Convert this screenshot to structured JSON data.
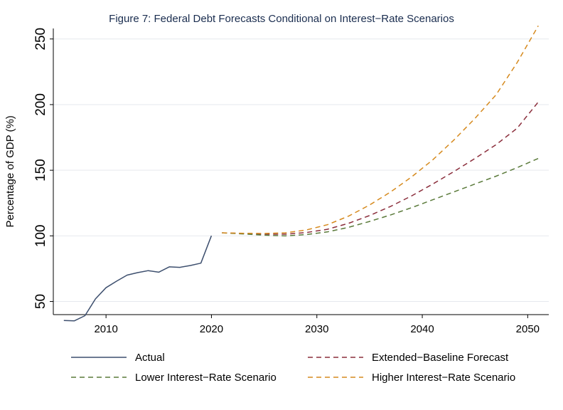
{
  "chart_data": {
    "type": "line",
    "title": "Figure 7: Federal Debt Forecasts Conditional on Interest−Rate Scenarios",
    "xlabel": "",
    "ylabel": "Percentage of GDP (%)",
    "xlim": [
      2005,
      2052
    ],
    "ylim": [
      40,
      258
    ],
    "xticks": [
      2010,
      2020,
      2030,
      2040,
      2050
    ],
    "yticks": [
      50,
      100,
      150,
      200,
      250
    ],
    "grid": true,
    "legend_position": "bottom",
    "series": [
      {
        "name": "Actual",
        "color": "#3d4f6e",
        "dash": "solid",
        "x": [
          2006,
          2007,
          2008,
          2009,
          2010,
          2011,
          2012,
          2013,
          2014,
          2015,
          2016,
          2017,
          2018,
          2019,
          2020
        ],
        "y": [
          35.5,
          35.3,
          39.2,
          52.0,
          60.5,
          65.5,
          70.1,
          72.0,
          73.5,
          72.3,
          76.4,
          76.0,
          77.4,
          79.2,
          100.1
        ]
      },
      {
        "name": "Extended−Baseline Forecast",
        "color": "#8b2e3c",
        "dash": "dashed",
        "x": [
          2021,
          2023,
          2025,
          2027,
          2029,
          2031,
          2033,
          2035,
          2037,
          2039,
          2041,
          2043,
          2045,
          2047,
          2049,
          2051
        ],
        "y": [
          102.3,
          101.8,
          101.3,
          101.3,
          102.5,
          105.0,
          109.5,
          115.5,
          122.5,
          130.5,
          139.5,
          149.0,
          159.0,
          169.5,
          182.0,
          202.0
        ]
      },
      {
        "name": "Lower Interest−Rate Scenario",
        "color": "#5a7a3a",
        "dash": "dashed",
        "x": [
          2021,
          2023,
          2025,
          2027,
          2029,
          2031,
          2033,
          2035,
          2037,
          2039,
          2041,
          2043,
          2045,
          2047,
          2049,
          2051
        ],
        "y": [
          102.3,
          101.5,
          100.5,
          100.0,
          101.0,
          103.0,
          106.5,
          111.0,
          116.0,
          121.5,
          127.5,
          133.5,
          139.5,
          145.5,
          152.0,
          159.0
        ]
      },
      {
        "name": "Higher Interest−Rate Scenario",
        "color": "#d68a1e",
        "dash": "dashed",
        "x": [
          2021,
          2023,
          2025,
          2027,
          2029,
          2031,
          2033,
          2035,
          2037,
          2039,
          2041,
          2043,
          2045,
          2047,
          2049,
          2051
        ],
        "y": [
          102.3,
          102.0,
          101.8,
          102.3,
          104.5,
          108.5,
          115.0,
          123.5,
          133.5,
          145.0,
          158.0,
          173.0,
          189.5,
          207.5,
          232.0,
          260.0
        ]
      }
    ],
    "legend": [
      "Actual",
      "Extended−Baseline Forecast",
      "Lower Interest−Rate Scenario",
      "Higher Interest−Rate Scenario"
    ]
  }
}
